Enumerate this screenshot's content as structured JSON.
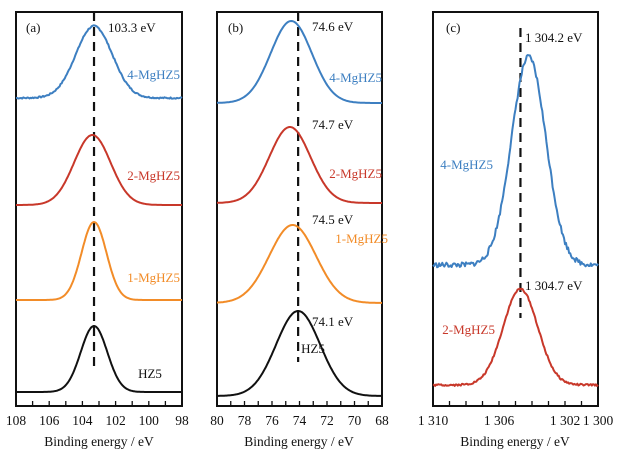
{
  "chart_data": [
    {
      "type": "line",
      "panel_label": "(a)",
      "title": "",
      "xlabel": "Binding energy / eV",
      "ylabel": "",
      "xlim": [
        108,
        98
      ],
      "x_reversed": true,
      "xticks": [
        108,
        106,
        104,
        102,
        100,
        98
      ],
      "xtick_labels": [
        "108",
        "106",
        "104",
        "102",
        "100",
        "98"
      ],
      "reference_line": 103.3,
      "peak_annotations": [
        {
          "series": "4-MgHZ5",
          "text": "103.3 eV"
        }
      ],
      "series": [
        {
          "name": "4-MgHZ5",
          "color": "#3d7fc1",
          "peak": 103.3,
          "width": 1.1,
          "order": 0,
          "noise": 0.01
        },
        {
          "name": "2-MgHZ5",
          "color": "#c8382a",
          "peak": 103.4,
          "width": 1.1,
          "order": 1,
          "noise": 0.0
        },
        {
          "name": "1-MgHZ5",
          "color": "#f28c28",
          "peak": 103.3,
          "width": 0.75,
          "order": 2,
          "noise": 0.0
        },
        {
          "name": "HZ5",
          "color": "#111111",
          "peak": 103.3,
          "width": 0.8,
          "order": 3,
          "noise": 0.0
        }
      ]
    },
    {
      "type": "line",
      "panel_label": "(b)",
      "title": "",
      "xlabel": "Binding energy / eV",
      "ylabel": "",
      "xlim": [
        80,
        68
      ],
      "x_reversed": true,
      "xticks": [
        80,
        78,
        76,
        74,
        72,
        70,
        68
      ],
      "xtick_labels": [
        "80",
        "78",
        "76",
        "74",
        "72",
        "70",
        "68"
      ],
      "reference_line": 74.1,
      "peak_annotations": [
        {
          "series": "4-MgHZ5",
          "text": "74.6 eV"
        },
        {
          "series": "2-MgHZ5",
          "text": "74.7 eV"
        },
        {
          "series": "1-MgHZ5",
          "text": "74.5 eV"
        },
        {
          "series": "HZ5",
          "text": "74.1 eV"
        }
      ],
      "series": [
        {
          "name": "4-MgHZ5",
          "color": "#3d7fc1",
          "peak": 74.6,
          "width": 1.5,
          "order": 0,
          "noise": 0.0
        },
        {
          "name": "2-MgHZ5",
          "color": "#c8382a",
          "peak": 74.7,
          "width": 1.5,
          "order": 1,
          "noise": 0.0
        },
        {
          "name": "1-MgHZ5",
          "color": "#f28c28",
          "peak": 74.5,
          "width": 1.7,
          "order": 2,
          "noise": 0.0
        },
        {
          "name": "HZ5",
          "color": "#111111",
          "peak": 74.1,
          "width": 1.6,
          "order": 3,
          "noise": 0.0
        }
      ]
    },
    {
      "type": "line",
      "panel_label": "(c)",
      "title": "",
      "xlabel": "Binding energy / eV",
      "ylabel": "",
      "xlim": [
        1310,
        1300
      ],
      "x_reversed": true,
      "xticks": [
        1310,
        1306,
        1302,
        1300
      ],
      "xtick_labels": [
        "1 310",
        "1 306",
        "1 302",
        "1 300"
      ],
      "minor_xticks": [
        1309,
        1308,
        1307,
        1305,
        1304,
        1303,
        1301
      ],
      "reference_line": 1304.7,
      "peak_annotations": [
        {
          "series": "4-MgHZ5",
          "text": "1 304.2 eV"
        },
        {
          "series": "2-MgHZ5",
          "text": "1 304.7 eV"
        }
      ],
      "series": [
        {
          "name": "4-MgHZ5",
          "color": "#3d7fc1",
          "peak": 1304.2,
          "width": 1.05,
          "order": 0,
          "noise": 0.012
        },
        {
          "name": "2-MgHZ5",
          "color": "#c8382a",
          "peak": 1304.7,
          "width": 1.05,
          "order": 1,
          "noise": 0.01
        }
      ]
    }
  ]
}
